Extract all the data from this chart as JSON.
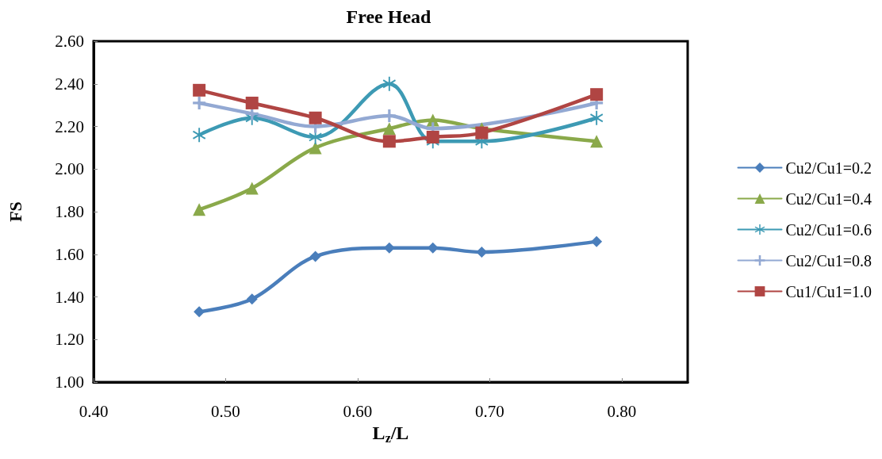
{
  "chart_data": {
    "type": "line",
    "title": "Free Head",
    "xlabel": "L$_{z}$/L",
    "ylabel": "FS",
    "x": [
      0.48,
      0.52,
      0.568,
      0.624,
      0.657,
      0.694,
      0.781
    ],
    "xlim": [
      0.4,
      0.85
    ],
    "xticks": [
      {
        "value": 0.4,
        "label": "0.40"
      },
      {
        "value": 0.5,
        "label": "0.50"
      },
      {
        "value": 0.6,
        "label": "0.60"
      },
      {
        "value": 0.7,
        "label": "0.70"
      },
      {
        "value": 0.8,
        "label": "0.80"
      }
    ],
    "ylim": [
      1.0,
      2.6
    ],
    "yticks": [
      {
        "value": 1.0,
        "label": "1.00"
      },
      {
        "value": 1.2,
        "label": "1.20"
      },
      {
        "value": 1.4,
        "label": "1.40"
      },
      {
        "value": 1.6,
        "label": "1.60"
      },
      {
        "value": 1.8,
        "label": "1.80"
      },
      {
        "value": 2.0,
        "label": "2.00"
      },
      {
        "value": 2.2,
        "label": "2.20"
      },
      {
        "value": 2.4,
        "label": "2.40"
      },
      {
        "value": 2.6,
        "label": "2.60"
      }
    ],
    "grid": false,
    "legend": "right",
    "line_style": "solid",
    "series": [
      {
        "name": "Cu2/Cu1=0.2",
        "color": "#4a7ebb",
        "marker": "diamond",
        "values": [
          1.33,
          1.39,
          1.59,
          1.63,
          1.63,
          1.61,
          1.66
        ]
      },
      {
        "name": "Cu2/Cu1=0.4",
        "color": "#8aa94a",
        "marker": "triangle",
        "values": [
          1.81,
          1.91,
          2.1,
          2.19,
          2.23,
          2.19,
          2.13
        ]
      },
      {
        "name": "Cu2/Cu1=0.6",
        "color": "#3d9ab4",
        "marker": "star",
        "values": [
          2.16,
          2.24,
          2.15,
          2.4,
          2.13,
          2.13,
          2.24
        ]
      },
      {
        "name": "Cu2/Cu1=0.8",
        "color": "#93a9d3",
        "marker": "cross",
        "values": [
          2.31,
          2.26,
          2.2,
          2.25,
          2.19,
          null,
          2.31
        ]
      },
      {
        "name": "Cu1/Cu1=1.0",
        "color": "#b04543",
        "marker": "square",
        "values": [
          2.37,
          2.31,
          2.24,
          2.13,
          2.15,
          2.17,
          2.35
        ]
      }
    ]
  }
}
